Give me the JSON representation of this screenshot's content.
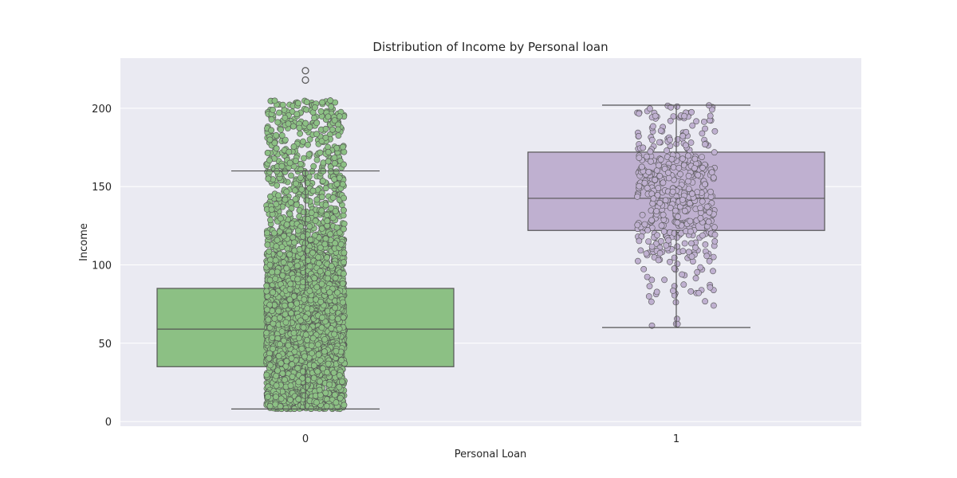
{
  "chart_data": {
    "type": "box",
    "title": "Distribution of Income by Personal loan",
    "xlabel": "Personal Loan",
    "ylabel": "Income",
    "categories": [
      "0",
      "1"
    ],
    "yticks": [
      0,
      50,
      100,
      150,
      200
    ],
    "ylim": [
      -3,
      232
    ],
    "grid": true,
    "background_color": "#eaeaf2",
    "grid_color": "#ffffff",
    "box_edge_color": "#555555",
    "series": [
      {
        "category": "0",
        "color": "#8cc084",
        "whisker_low": 8,
        "q1": 35,
        "median": 59,
        "q3": 85,
        "whisker_high": 160,
        "outliers": [
          218,
          224
        ],
        "points_count": 4520,
        "points_range": [
          8,
          224
        ]
      },
      {
        "category": "1",
        "color": "#bfb0d0",
        "whisker_low": 60,
        "q1": 122,
        "median": 142.5,
        "q3": 172,
        "whisker_high": 202,
        "outliers": [],
        "points_count": 480,
        "points_range": [
          60,
          202
        ]
      }
    ]
  }
}
